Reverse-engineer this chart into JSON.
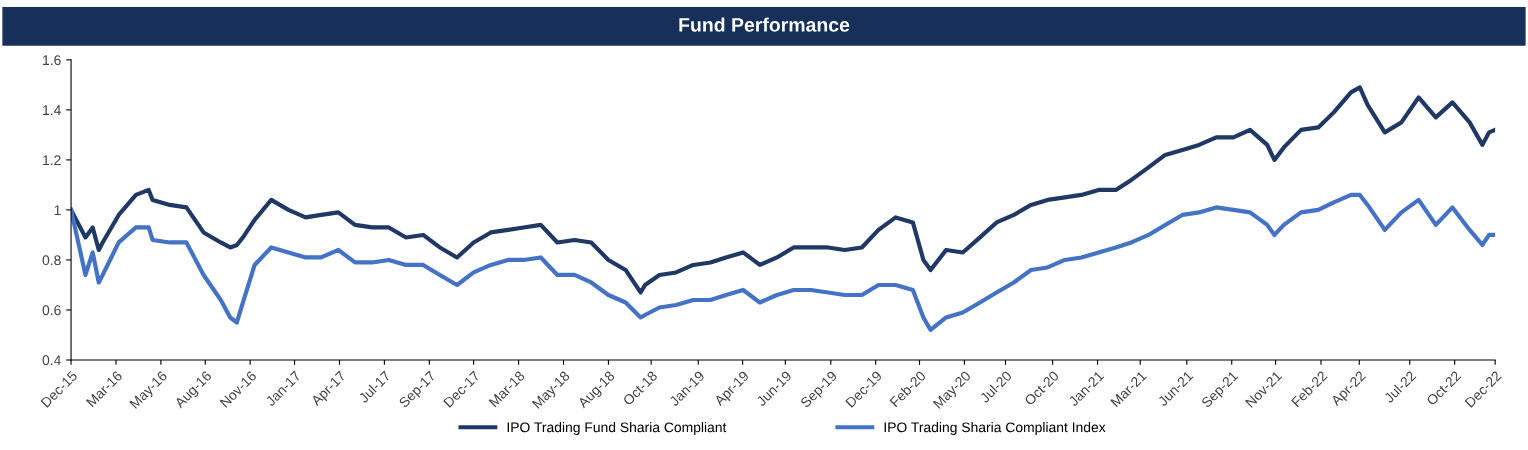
{
  "chart_data": {
    "type": "line",
    "title": "Fund Performance",
    "x": [
      "2015-12-20",
      "2016-01-15",
      "2016-01-28",
      "2016-02-08",
      "2016-02-15",
      "2016-03-15",
      "2016-04-15",
      "2016-05-08",
      "2016-05-15",
      "2016-06-15",
      "2016-07-15",
      "2016-08-15",
      "2016-09-15",
      "2016-10-02",
      "2016-10-14",
      "2016-10-25",
      "2016-11-15",
      "2016-12-15",
      "2017-01-15",
      "2017-02-15",
      "2017-03-15",
      "2017-04-15",
      "2017-05-15",
      "2017-06-15",
      "2017-07-15",
      "2017-08-15",
      "2017-09-15",
      "2017-10-15",
      "2017-11-15",
      "2017-12-15",
      "2018-01-15",
      "2018-02-15",
      "2018-03-15",
      "2018-04-15",
      "2018-05-15",
      "2018-06-15",
      "2018-07-15",
      "2018-08-15",
      "2018-09-15",
      "2018-10-12",
      "2018-10-20",
      "2018-11-15",
      "2018-12-15",
      "2019-01-15",
      "2019-02-15",
      "2019-03-15",
      "2019-04-15",
      "2019-05-15",
      "2019-06-15",
      "2019-07-15",
      "2019-08-15",
      "2019-09-15",
      "2019-10-15",
      "2019-11-15",
      "2019-12-15",
      "2020-01-15",
      "2020-02-15",
      "2020-03-05",
      "2020-03-18",
      "2020-04-15",
      "2020-05-15",
      "2020-06-15",
      "2020-07-15",
      "2020-08-15",
      "2020-09-15",
      "2020-10-15",
      "2020-11-15",
      "2020-12-15",
      "2021-01-15",
      "2021-02-15",
      "2021-03-15",
      "2021-04-15",
      "2021-05-15",
      "2021-06-15",
      "2021-07-15",
      "2021-08-15",
      "2021-09-15",
      "2021-10-15",
      "2021-11-15",
      "2021-11-28",
      "2021-12-15",
      "2022-01-15",
      "2022-02-15",
      "2022-03-15",
      "2022-04-15",
      "2022-05-01",
      "2022-05-15",
      "2022-06-15",
      "2022-07-15",
      "2022-08-15",
      "2022-09-15",
      "2022-10-15",
      "2022-11-15",
      "2022-12-08",
      "2022-12-20",
      "2022-12-31"
    ],
    "series": [
      {
        "name": "IPO Trading Fund Sharia Compliant",
        "color": "#1f3864",
        "values": [
          1.0,
          0.89,
          0.93,
          0.84,
          0.87,
          0.98,
          1.06,
          1.08,
          1.04,
          1.02,
          1.01,
          0.91,
          0.87,
          0.85,
          0.86,
          0.89,
          0.96,
          1.04,
          1.0,
          0.97,
          0.98,
          0.99,
          0.94,
          0.93,
          0.93,
          0.89,
          0.9,
          0.85,
          0.81,
          0.87,
          0.91,
          0.92,
          0.93,
          0.94,
          0.87,
          0.88,
          0.87,
          0.8,
          0.76,
          0.67,
          0.7,
          0.74,
          0.75,
          0.78,
          0.79,
          0.81,
          0.83,
          0.78,
          0.81,
          0.85,
          0.85,
          0.85,
          0.84,
          0.85,
          0.92,
          0.97,
          0.95,
          0.8,
          0.76,
          0.84,
          0.83,
          0.89,
          0.95,
          0.98,
          1.02,
          1.04,
          1.05,
          1.06,
          1.08,
          1.08,
          1.12,
          1.17,
          1.22,
          1.24,
          1.26,
          1.29,
          1.29,
          1.32,
          1.26,
          1.2,
          1.25,
          1.32,
          1.33,
          1.39,
          1.47,
          1.49,
          1.42,
          1.31,
          1.35,
          1.45,
          1.37,
          1.43,
          1.35,
          1.26,
          1.31,
          1.32
        ]
      },
      {
        "name": "IPO Trading Sharia Compliant Index",
        "color": "#4472c4",
        "values": [
          1.0,
          0.74,
          0.83,
          0.71,
          0.74,
          0.87,
          0.93,
          0.93,
          0.88,
          0.87,
          0.87,
          0.74,
          0.64,
          0.57,
          0.55,
          0.63,
          0.78,
          0.85,
          0.83,
          0.81,
          0.81,
          0.84,
          0.79,
          0.79,
          0.8,
          0.78,
          0.78,
          0.74,
          0.7,
          0.75,
          0.78,
          0.8,
          0.8,
          0.81,
          0.74,
          0.74,
          0.71,
          0.66,
          0.63,
          0.57,
          0.58,
          0.61,
          0.62,
          0.64,
          0.64,
          0.66,
          0.68,
          0.63,
          0.66,
          0.68,
          0.68,
          0.67,
          0.66,
          0.66,
          0.7,
          0.7,
          0.68,
          0.57,
          0.52,
          0.57,
          0.59,
          0.63,
          0.67,
          0.71,
          0.76,
          0.77,
          0.8,
          0.81,
          0.83,
          0.85,
          0.87,
          0.9,
          0.94,
          0.98,
          0.99,
          1.01,
          1.0,
          0.99,
          0.94,
          0.9,
          0.94,
          0.99,
          1.0,
          1.03,
          1.06,
          1.06,
          1.02,
          0.92,
          0.99,
          1.04,
          0.94,
          1.01,
          0.92,
          0.86,
          0.9,
          0.9
        ]
      }
    ],
    "xlim": [
      "2015-12-20",
      "2022-12-31"
    ],
    "xticks": [
      {
        "value": "2015-12-20",
        "label": "Dec-15"
      },
      {
        "value": "2016-03-10",
        "label": "Mar-16"
      },
      {
        "value": "2016-05-30",
        "label": "May-16"
      },
      {
        "value": "2016-08-18",
        "label": "Aug-16"
      },
      {
        "value": "2016-11-07",
        "label": "Nov-16"
      },
      {
        "value": "2017-01-26",
        "label": "Jan-17"
      },
      {
        "value": "2017-04-17",
        "label": "Apr-17"
      },
      {
        "value": "2017-07-07",
        "label": "Jul-17"
      },
      {
        "value": "2017-09-26",
        "label": "Sep-17"
      },
      {
        "value": "2017-12-15",
        "label": "Dec-17"
      },
      {
        "value": "2018-03-06",
        "label": "Mar-18"
      },
      {
        "value": "2018-05-26",
        "label": "May-18"
      },
      {
        "value": "2018-08-15",
        "label": "Aug-18"
      },
      {
        "value": "2018-10-31",
        "label": "Oct-18"
      },
      {
        "value": "2019-01-24",
        "label": "Jan-19"
      },
      {
        "value": "2019-04-14",
        "label": "Apr-19"
      },
      {
        "value": "2019-06-30",
        "label": "Jun-19"
      },
      {
        "value": "2019-09-20",
        "label": "Sep-19"
      },
      {
        "value": "2019-12-10",
        "label": "Dec-19"
      },
      {
        "value": "2020-02-27",
        "label": "Feb-20"
      },
      {
        "value": "2020-05-18",
        "label": "May-20"
      },
      {
        "value": "2020-07-31",
        "label": "Jul-20"
      },
      {
        "value": "2020-10-24",
        "label": "Oct-20"
      },
      {
        "value": "2021-01-13",
        "label": "Jan-21"
      },
      {
        "value": "2021-03-31",
        "label": "Mar-21"
      },
      {
        "value": "2021-06-23",
        "label": "Jun-21"
      },
      {
        "value": "2021-09-12",
        "label": "Sep-21"
      },
      {
        "value": "2021-11-30",
        "label": "Nov-21"
      },
      {
        "value": "2022-02-20",
        "label": "Feb-22"
      },
      {
        "value": "2022-04-30",
        "label": "Apr-22"
      },
      {
        "value": "2022-07-30",
        "label": "Jul-22"
      },
      {
        "value": "2022-10-19",
        "label": "Oct-22"
      },
      {
        "value": "2022-12-31",
        "label": "Dec-22"
      }
    ],
    "ylim": [
      0.4,
      1.6
    ],
    "yticks": [
      {
        "value": 0.4,
        "label": "0.4"
      },
      {
        "value": 0.6,
        "label": "0.6"
      },
      {
        "value": 0.8,
        "label": "0.8"
      },
      {
        "value": 1,
        "label": "1"
      },
      {
        "value": 1.2,
        "label": "1.2"
      },
      {
        "value": 1.4,
        "label": "1.4"
      },
      {
        "value": 1.6,
        "label": "1.6"
      }
    ],
    "grid": false,
    "legend": "bottom",
    "marker": "none",
    "line_style": "solid"
  }
}
